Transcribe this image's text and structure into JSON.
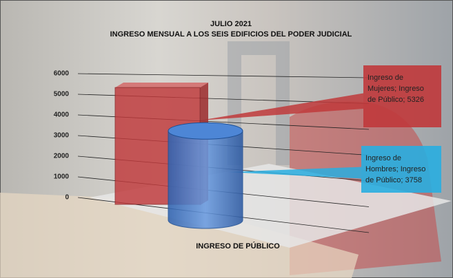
{
  "chart_data": {
    "type": "bar3d",
    "title": [
      "JULIO 2021",
      "INGRESO MENSUAL  A LOS SEIS EDIFICIOS DEL PODER JUDICIAL"
    ],
    "categories": [
      "INGRESO DE PÚBLICO"
    ],
    "series": [
      {
        "color": "#c0393b",
        "shape": "box",
        "values": [
          5326
        ],
        "value_labels": [
          [
            "Ingreso de",
            "Mujeres; Ingreso",
            "de Público;  5326"
          ]
        ]
      },
      {
        "color": "#3f78c8",
        "shape": "cylinder",
        "values": [
          3758
        ],
        "value_labels": [
          [
            "Ingreso  de",
            "Hombres; Ingreso",
            "de Público;  3758"
          ]
        ]
      }
    ],
    "ylim": [
      0,
      6000
    ],
    "yticks": [
      0,
      1000,
      2000,
      3000,
      4000,
      5000,
      6000
    ],
    "grid": true
  }
}
